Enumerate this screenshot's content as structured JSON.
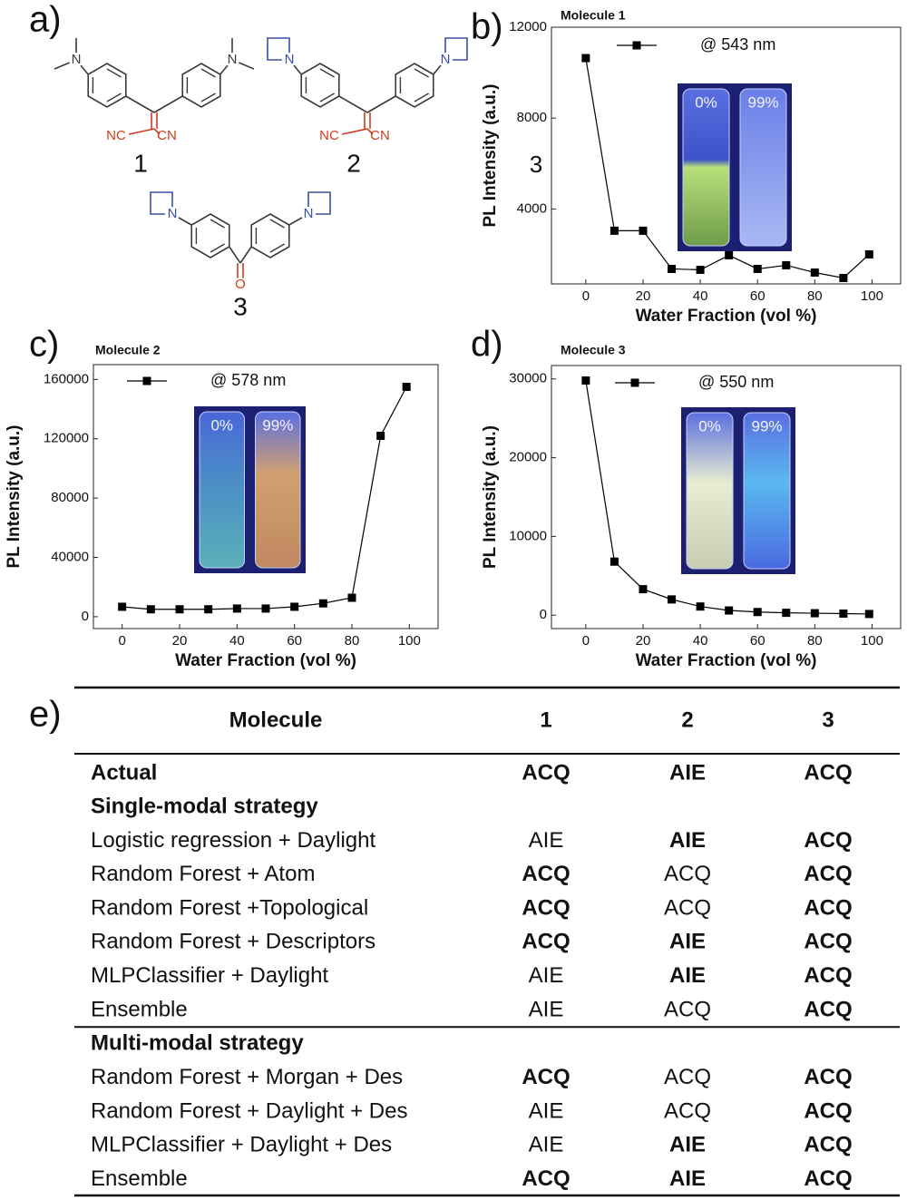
{
  "panel_labels": [
    "a)",
    "b)",
    "c)",
    "d)",
    "e)"
  ],
  "molecules": [
    {
      "label": "1",
      "atoms": [
        "N",
        "N",
        "NC",
        "CN"
      ]
    },
    {
      "label": "2",
      "atoms": [
        "N",
        "N",
        "NC",
        "CN"
      ]
    },
    {
      "label": "3",
      "atoms": [
        "N",
        "N",
        "O"
      ]
    }
  ],
  "chart_data": [
    {
      "type": "line",
      "title": "Molecule 1",
      "x_label": "Water Fraction (vol %)",
      "y_label": "PL Intensity (a.u.)",
      "x": [
        0,
        10,
        20,
        30,
        40,
        50,
        60,
        70,
        80,
        90,
        99
      ],
      "series": [
        {
          "name": "@ 543 nm",
          "color": "#000000",
          "values": [
            10640,
            3040,
            3040,
            1360,
            1320,
            1960,
            1360,
            1520,
            1200,
            960,
            2000
          ]
        }
      ],
      "xlim": [
        -12,
        110
      ],
      "ylim": [
        700,
        12000
      ],
      "xticks": [
        0,
        20,
        40,
        60,
        80,
        100
      ],
      "yticks": [
        4000,
        8000,
        12000
      ],
      "inset_labels": [
        "0%",
        "99%"
      ],
      "annotations": [
        "3"
      ]
    },
    {
      "type": "line",
      "title": "Molecule 2",
      "x_label": "Water Fraction (vol %)",
      "y_label": "PL Intensity (a.u.)",
      "x": [
        0,
        10,
        20,
        30,
        40,
        50,
        60,
        70,
        80,
        90,
        99
      ],
      "series": [
        {
          "name": "@ 578 nm",
          "color": "#000000",
          "values": [
            6700,
            5000,
            5000,
            5000,
            5500,
            5500,
            6700,
            9000,
            12800,
            122000,
            155000
          ]
        }
      ],
      "xlim": [
        -10,
        110
      ],
      "ylim": [
        -8000,
        170000
      ],
      "xticks": [
        0,
        20,
        40,
        60,
        80,
        100
      ],
      "yticks": [
        0,
        40000,
        80000,
        120000,
        160000
      ],
      "inset_labels": [
        "0%",
        "99%"
      ]
    },
    {
      "type": "line",
      "title": "Molecule 3",
      "x_label": "Water Fraction (vol %)",
      "y_label": "PL Intensity (a.u.)",
      "x": [
        0,
        10,
        20,
        30,
        40,
        50,
        60,
        70,
        80,
        90,
        99
      ],
      "series": [
        {
          "name": "@ 550 nm",
          "color": "#000000",
          "values": [
            29800,
            6800,
            3300,
            2000,
            1100,
            600,
            400,
            300,
            250,
            200,
            150
          ]
        }
      ],
      "xlim": [
        -12,
        110
      ],
      "ylim": [
        -1700,
        31700
      ],
      "xticks": [
        0,
        20,
        40,
        60,
        80,
        100
      ],
      "yticks": [
        0,
        10000,
        20000,
        30000
      ],
      "inset_labels": [
        "0%",
        "99%"
      ]
    }
  ],
  "table": {
    "header": [
      "Molecule",
      "1",
      "2",
      "3"
    ],
    "actual": {
      "cells": [
        "Actual",
        "ACQ",
        "AIE",
        "ACQ"
      ],
      "bold": [
        true,
        true,
        true,
        true
      ]
    },
    "sections": [
      {
        "title": "Single-modal strategy",
        "rows": [
          {
            "cells": [
              "Logistic regression + Daylight",
              "AIE",
              "AIE",
              "ACQ"
            ],
            "bold": [
              false,
              false,
              true,
              true
            ]
          },
          {
            "cells": [
              "Random Forest + Atom",
              "ACQ",
              "ACQ",
              "ACQ"
            ],
            "bold": [
              false,
              true,
              false,
              true
            ]
          },
          {
            "cells": [
              "Random Forest +Topological",
              "ACQ",
              "ACQ",
              "ACQ"
            ],
            "bold": [
              false,
              true,
              false,
              true
            ]
          },
          {
            "cells": [
              "Random Forest + Descriptors",
              "ACQ",
              "AIE",
              "ACQ"
            ],
            "bold": [
              false,
              true,
              true,
              true
            ]
          },
          {
            "cells": [
              "MLPClassifier + Daylight",
              "AIE",
              "AIE",
              "ACQ"
            ],
            "bold": [
              false,
              false,
              true,
              true
            ]
          },
          {
            "cells": [
              "Ensemble",
              "AIE",
              "ACQ",
              "ACQ"
            ],
            "bold": [
              false,
              false,
              false,
              true
            ]
          }
        ]
      },
      {
        "title": "Multi-modal strategy",
        "rows": [
          {
            "cells": [
              "Random Forest + Morgan + Des",
              "ACQ",
              "ACQ",
              "ACQ"
            ],
            "bold": [
              false,
              true,
              false,
              true
            ]
          },
          {
            "cells": [
              "Random Forest + Daylight + Des",
              "AIE",
              "ACQ",
              "ACQ"
            ],
            "bold": [
              false,
              false,
              false,
              true
            ]
          },
          {
            "cells": [
              "MLPClassifier + Daylight + Des",
              "AIE",
              "AIE",
              "ACQ"
            ],
            "bold": [
              false,
              false,
              true,
              true
            ]
          },
          {
            "cells": [
              "Ensemble",
              "ACQ",
              "AIE",
              "ACQ"
            ],
            "bold": [
              false,
              true,
              true,
              true
            ]
          }
        ]
      }
    ]
  }
}
